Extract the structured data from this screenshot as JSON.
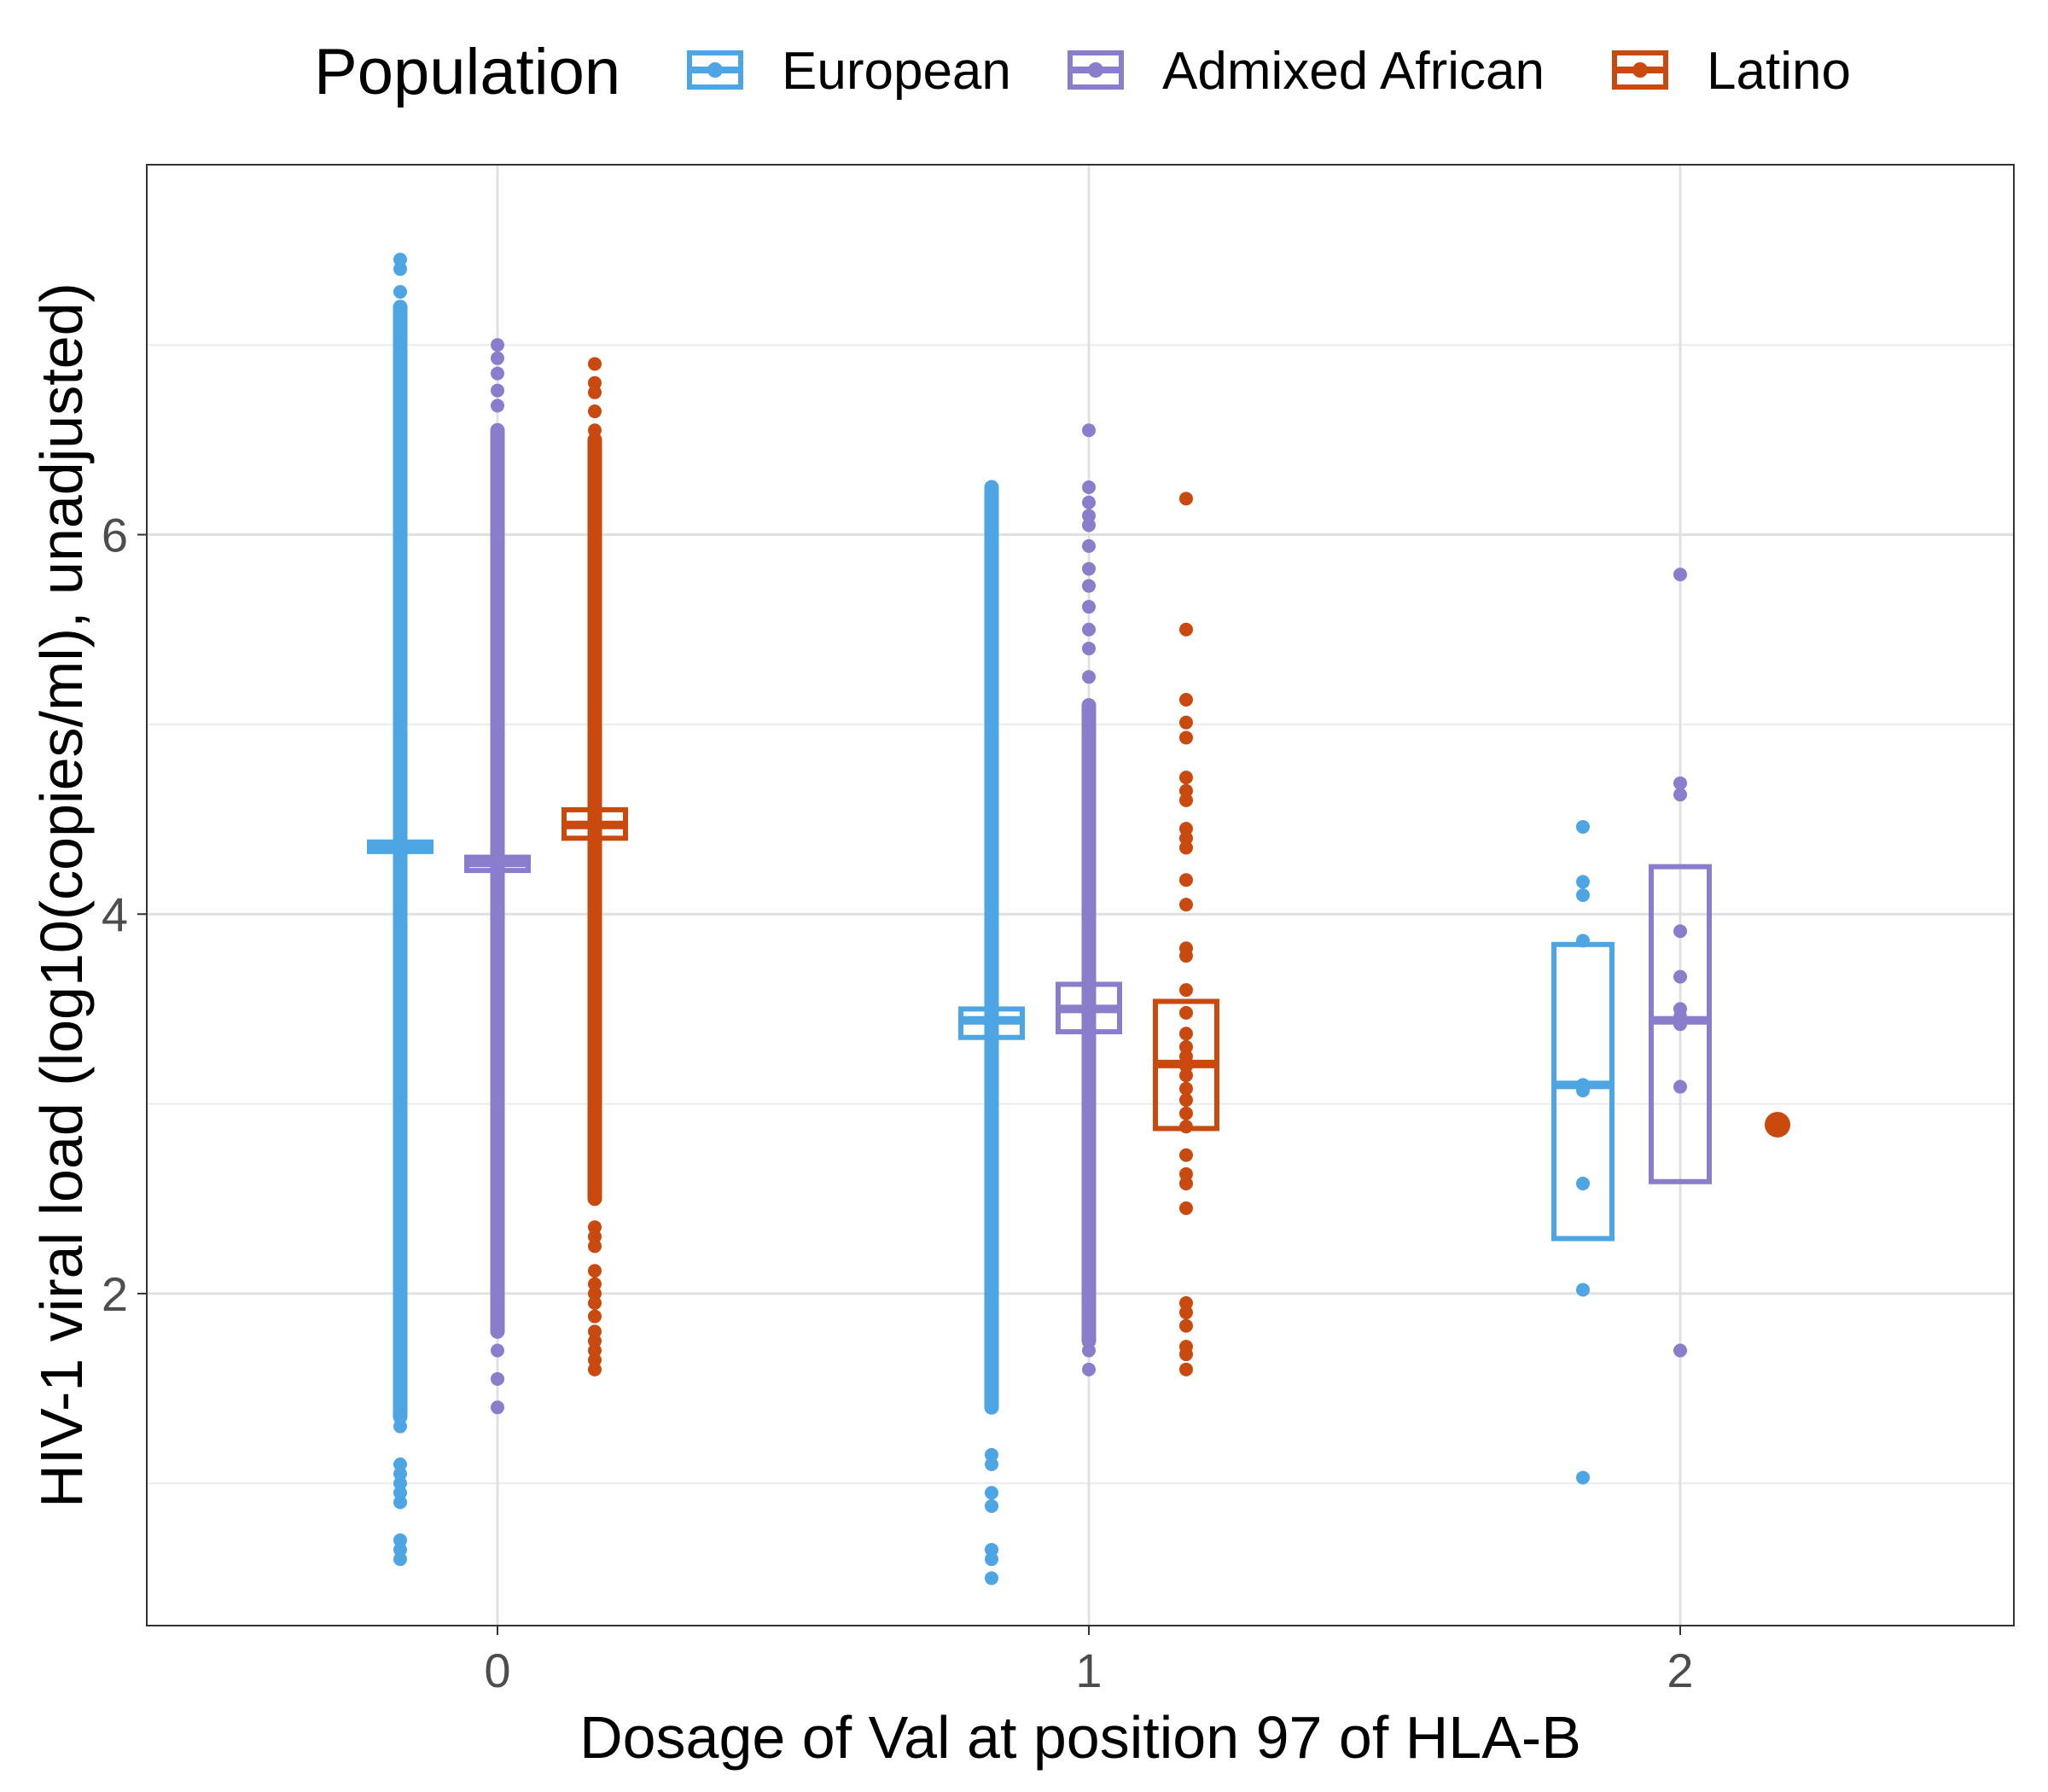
{
  "legend": {
    "title": "Population",
    "placement": "top",
    "entries": [
      {
        "name": "European",
        "color": "#4DA6E3"
      },
      {
        "name": "Admixed African",
        "color": "#8A7DCB"
      },
      {
        "name": "Latino",
        "color": "#C9490E"
      }
    ]
  },
  "chart_data": {
    "type": "box_with_points",
    "xlabel": "Dosage of Val at position 97 of HLA-B",
    "ylabel": "HIV-1 viral load (log10(copies/ml), unadjusted)",
    "categories": [
      "0",
      "1",
      "2"
    ],
    "ylim": [
      0.25,
      7.95
    ],
    "yticks": [
      2,
      4,
      6
    ],
    "grid": true,
    "series": [
      {
        "name": "European",
        "color": "#4DA6E3",
        "boxes": [
          {
            "category": "0",
            "q1": 4.33,
            "median": 4.36,
            "q3": 4.38
          },
          {
            "category": "1",
            "q1": 3.35,
            "median": 3.44,
            "q3": 3.5
          },
          {
            "category": "2",
            "q1": 2.29,
            "median": 3.1,
            "q3": 3.84
          }
        ],
        "point_ranges": [
          {
            "category": "0",
            "min": 1.35,
            "max": 7.2
          },
          {
            "category": "1",
            "min": 1.4,
            "max": 5.45
          },
          {
            "category": "1",
            "min": 1.95,
            "max": 6.25
          }
        ],
        "points": [
          {
            "category": "0",
            "y": 7.45
          },
          {
            "category": "0",
            "y": 7.4
          },
          {
            "category": "0",
            "y": 7.28
          },
          {
            "category": "0",
            "y": 1.3
          },
          {
            "category": "0",
            "y": 1.1
          },
          {
            "category": "0",
            "y": 1.05
          },
          {
            "category": "0",
            "y": 1.0
          },
          {
            "category": "0",
            "y": 0.95
          },
          {
            "category": "0",
            "y": 0.9
          },
          {
            "category": "0",
            "y": 0.7
          },
          {
            "category": "0",
            "y": 0.65
          },
          {
            "category": "0",
            "y": 0.6
          },
          {
            "category": "1",
            "y": 6.18
          },
          {
            "category": "1",
            "y": 6.05
          },
          {
            "category": "1",
            "y": 5.93
          },
          {
            "category": "1",
            "y": 5.82
          },
          {
            "category": "1",
            "y": 5.65
          },
          {
            "category": "1",
            "y": 1.15
          },
          {
            "category": "1",
            "y": 1.1
          },
          {
            "category": "1",
            "y": 0.95
          },
          {
            "category": "1",
            "y": 0.88
          },
          {
            "category": "1",
            "y": 0.65
          },
          {
            "category": "1",
            "y": 0.6
          },
          {
            "category": "1",
            "y": 0.5
          },
          {
            "category": "2",
            "y": 4.46
          },
          {
            "category": "2",
            "y": 4.17
          },
          {
            "category": "2",
            "y": 4.1
          },
          {
            "category": "2",
            "y": 3.86
          },
          {
            "category": "2",
            "y": 3.1
          },
          {
            "category": "2",
            "y": 3.07
          },
          {
            "category": "2",
            "y": 2.58
          },
          {
            "category": "2",
            "y": 2.02
          },
          {
            "category": "2",
            "y": 1.03
          }
        ]
      },
      {
        "name": "Admixed African",
        "color": "#8A7DCB",
        "boxes": [
          {
            "category": "0",
            "q1": 4.23,
            "median": 4.27,
            "q3": 4.3
          },
          {
            "category": "1",
            "q1": 3.38,
            "median": 3.5,
            "q3": 3.63
          },
          {
            "category": "2",
            "q1": 2.59,
            "median": 3.44,
            "q3": 4.25
          }
        ],
        "point_ranges": [
          {
            "category": "0",
            "min": 1.8,
            "max": 6.55
          },
          {
            "category": "1",
            "min": 1.75,
            "max": 5.1
          }
        ],
        "points": [
          {
            "category": "0",
            "y": 7.0
          },
          {
            "category": "0",
            "y": 6.93
          },
          {
            "category": "0",
            "y": 6.85
          },
          {
            "category": "0",
            "y": 6.76
          },
          {
            "category": "0",
            "y": 6.68
          },
          {
            "category": "0",
            "y": 1.7
          },
          {
            "category": "0",
            "y": 1.55
          },
          {
            "category": "0",
            "y": 1.4
          },
          {
            "category": "1",
            "y": 6.55
          },
          {
            "category": "1",
            "y": 6.25
          },
          {
            "category": "1",
            "y": 6.17
          },
          {
            "category": "1",
            "y": 6.1
          },
          {
            "category": "1",
            "y": 6.05
          },
          {
            "category": "1",
            "y": 5.94
          },
          {
            "category": "1",
            "y": 5.82
          },
          {
            "category": "1",
            "y": 5.73
          },
          {
            "category": "1",
            "y": 5.62
          },
          {
            "category": "1",
            "y": 5.5
          },
          {
            "category": "1",
            "y": 5.4
          },
          {
            "category": "1",
            "y": 5.25
          },
          {
            "category": "1",
            "y": 1.7
          },
          {
            "category": "1",
            "y": 1.6
          },
          {
            "category": "2",
            "y": 5.79
          },
          {
            "category": "2",
            "y": 4.69
          },
          {
            "category": "2",
            "y": 4.63
          },
          {
            "category": "2",
            "y": 3.91
          },
          {
            "category": "2",
            "y": 3.67
          },
          {
            "category": "2",
            "y": 3.5
          },
          {
            "category": "2",
            "y": 3.46
          },
          {
            "category": "2",
            "y": 3.42
          },
          {
            "category": "2",
            "y": 3.09
          },
          {
            "category": "2",
            "y": 1.7
          }
        ]
      },
      {
        "name": "Latino",
        "color": "#C9490E",
        "boxes": [
          {
            "category": "0",
            "q1": 4.4,
            "median": 4.47,
            "q3": 4.55
          },
          {
            "category": "1",
            "q1": 2.87,
            "median": 3.21,
            "q3": 3.54
          }
        ],
        "point_ranges": [
          {
            "category": "0",
            "min": 2.5,
            "max": 6.5
          }
        ],
        "points": [
          {
            "category": "0",
            "y": 6.9
          },
          {
            "category": "0",
            "y": 6.8
          },
          {
            "category": "0",
            "y": 6.75
          },
          {
            "category": "0",
            "y": 6.65
          },
          {
            "category": "0",
            "y": 6.55
          },
          {
            "category": "0",
            "y": 2.35
          },
          {
            "category": "0",
            "y": 2.3
          },
          {
            "category": "0",
            "y": 2.25
          },
          {
            "category": "0",
            "y": 2.12
          },
          {
            "category": "0",
            "y": 2.05
          },
          {
            "category": "0",
            "y": 2.0
          },
          {
            "category": "0",
            "y": 1.95
          },
          {
            "category": "0",
            "y": 1.88
          },
          {
            "category": "0",
            "y": 1.8
          },
          {
            "category": "0",
            "y": 1.75
          },
          {
            "category": "0",
            "y": 1.7
          },
          {
            "category": "0",
            "y": 1.65
          },
          {
            "category": "0",
            "y": 1.6
          },
          {
            "category": "1",
            "y": 6.19
          },
          {
            "category": "1",
            "y": 5.5
          },
          {
            "category": "1",
            "y": 5.13
          },
          {
            "category": "1",
            "y": 5.01
          },
          {
            "category": "1",
            "y": 4.93
          },
          {
            "category": "1",
            "y": 4.72
          },
          {
            "category": "1",
            "y": 4.65
          },
          {
            "category": "1",
            "y": 4.6
          },
          {
            "category": "1",
            "y": 4.45
          },
          {
            "category": "1",
            "y": 4.4
          },
          {
            "category": "1",
            "y": 4.35
          },
          {
            "category": "1",
            "y": 4.18
          },
          {
            "category": "1",
            "y": 4.05
          },
          {
            "category": "1",
            "y": 3.82
          },
          {
            "category": "1",
            "y": 3.78
          },
          {
            "category": "1",
            "y": 3.6
          },
          {
            "category": "1",
            "y": 3.48
          },
          {
            "category": "1",
            "y": 3.37
          },
          {
            "category": "1",
            "y": 3.3
          },
          {
            "category": "1",
            "y": 3.25
          },
          {
            "category": "1",
            "y": 3.2
          },
          {
            "category": "1",
            "y": 3.15
          },
          {
            "category": "1",
            "y": 3.08
          },
          {
            "category": "1",
            "y": 3.02
          },
          {
            "category": "1",
            "y": 2.95
          },
          {
            "category": "1",
            "y": 2.88
          },
          {
            "category": "1",
            "y": 2.73
          },
          {
            "category": "1",
            "y": 2.63
          },
          {
            "category": "1",
            "y": 2.58
          },
          {
            "category": "1",
            "y": 2.45
          },
          {
            "category": "1",
            "y": 1.95
          },
          {
            "category": "1",
            "y": 1.9
          },
          {
            "category": "1",
            "y": 1.83
          },
          {
            "category": "1",
            "y": 1.72
          },
          {
            "category": "1",
            "y": 1.68
          },
          {
            "category": "1",
            "y": 1.6
          },
          {
            "category": "2",
            "y": 2.89,
            "large": true
          }
        ]
      }
    ]
  }
}
